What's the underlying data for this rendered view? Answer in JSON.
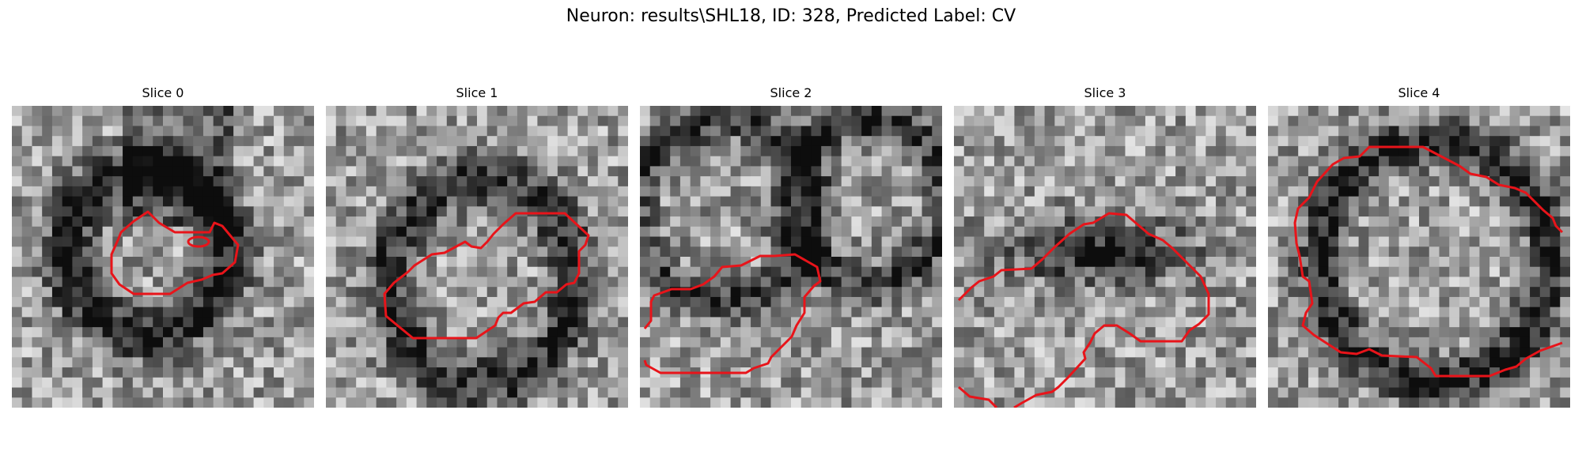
{
  "figure": {
    "title": "Neuron: results\\SHL18, ID: 328, Predicted Label: CV",
    "contour_color": "#e8141a"
  },
  "panels": [
    {
      "title": "Slice 0"
    },
    {
      "title": "Slice 1"
    },
    {
      "title": "Slice 2"
    },
    {
      "title": "Slice 3"
    },
    {
      "title": "Slice 4"
    }
  ]
}
